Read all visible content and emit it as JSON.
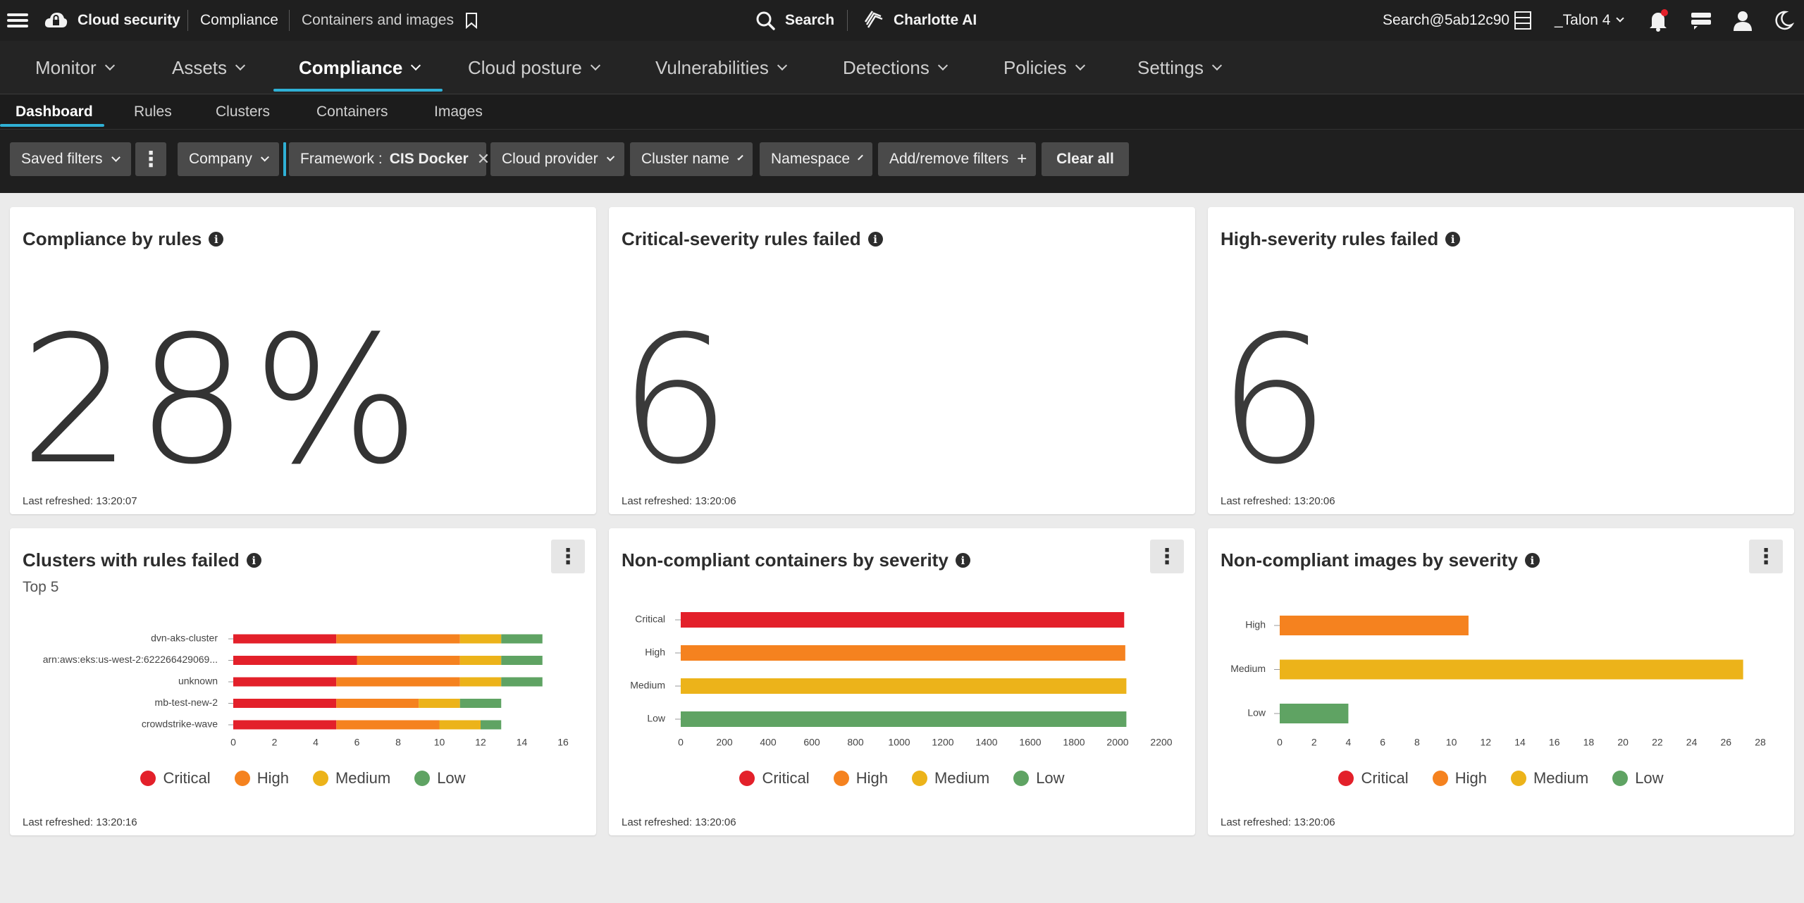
{
  "topbar": {
    "product": "Cloud security",
    "crumb1": "Compliance",
    "crumb2": "Containers and images",
    "search_label": "Search",
    "ai_label": "Charlotte AI",
    "user_email": "Search@5ab12c90",
    "tenant": "_Talon 4"
  },
  "mainnav": {
    "items": [
      {
        "label": "Monitor"
      },
      {
        "label": "Assets"
      },
      {
        "label": "Compliance"
      },
      {
        "label": "Cloud posture"
      },
      {
        "label": "Vulnerabilities"
      },
      {
        "label": "Detections"
      },
      {
        "label": "Policies"
      },
      {
        "label": "Settings"
      }
    ],
    "active": "Compliance"
  },
  "subnav": {
    "items": [
      {
        "label": "Dashboard"
      },
      {
        "label": "Rules"
      },
      {
        "label": "Clusters"
      },
      {
        "label": "Containers"
      },
      {
        "label": "Images"
      }
    ],
    "active": "Dashboard"
  },
  "filters": {
    "saved_filters": "Saved filters",
    "company": "Company",
    "framework_key": "Framework :",
    "framework_value": "CIS Docker",
    "cloud_provider": "Cloud provider",
    "cluster_name": "Cluster name",
    "namespace": "Namespace",
    "add_remove": "Add/remove filters",
    "clear_all": "Clear all"
  },
  "cards": {
    "compliance": {
      "title": "Compliance by rules",
      "value": "28%",
      "refreshed": "Last refreshed: 13:20:07"
    },
    "critical": {
      "title": "Critical-severity rules failed",
      "value": "6",
      "refreshed": "Last refreshed: 13:20:06"
    },
    "high": {
      "title": "High-severity rules failed",
      "value": "6",
      "refreshed": "Last refreshed: 13:20:06"
    },
    "clusters": {
      "title": "Clusters with rules failed",
      "subtitle": "Top 5",
      "refreshed": "Last refreshed: 13:20:16"
    },
    "containers": {
      "title": "Non-compliant containers by severity",
      "refreshed": "Last refreshed: 13:20:06"
    },
    "images": {
      "title": "Non-compliant images by severity",
      "refreshed": "Last refreshed: 13:20:06"
    }
  },
  "legend": {
    "critical": "Critical",
    "high": "High",
    "medium": "Medium",
    "low": "Low"
  },
  "colors": {
    "critical": "#e3202a",
    "high": "#f5821f",
    "medium": "#ecb31a",
    "low": "#5fa363",
    "accent": "#2fb0d5"
  },
  "icons": {
    "menu": "hamburger-menu-icon",
    "cloud": "cloud-lock-icon",
    "bookmark": "bookmark-icon",
    "search": "search-icon",
    "ai": "charlotte-ai-icon",
    "notifications": "bell-icon",
    "user": "user-icon",
    "theme": "moon-icon",
    "info": "info-icon",
    "kebab": "more-vertical-icon"
  },
  "chart_data": [
    {
      "type": "bar",
      "orientation": "horizontal",
      "stacked": true,
      "title": "Clusters with rules failed",
      "subtitle": "Top 5",
      "categories": [
        "dvn-aks-cluster",
        "arn:aws:eks:us-west-2:622266429069...",
        "unknown",
        "mb-test-new-2",
        "crowdstrike-wave"
      ],
      "series": [
        {
          "name": "Critical",
          "values": [
            5,
            6,
            5,
            5,
            5
          ]
        },
        {
          "name": "High",
          "values": [
            6,
            5,
            6,
            4,
            5
          ]
        },
        {
          "name": "Medium",
          "values": [
            2,
            2,
            2,
            2,
            2
          ]
        },
        {
          "name": "Low",
          "values": [
            2,
            2,
            2,
            2,
            1
          ]
        }
      ],
      "xlim": [
        0,
        16
      ],
      "xticks": [
        0,
        2,
        4,
        6,
        8,
        10,
        12,
        14,
        16
      ]
    },
    {
      "type": "bar",
      "orientation": "horizontal",
      "title": "Non-compliant containers by severity",
      "categories": [
        "Critical",
        "High",
        "Medium",
        "Low"
      ],
      "values": [
        2030,
        2035,
        2040,
        2040
      ],
      "xlim": [
        0,
        2200
      ],
      "xticks": [
        0,
        200,
        400,
        600,
        800,
        1000,
        1200,
        1400,
        1600,
        1800,
        2000,
        2200
      ]
    },
    {
      "type": "bar",
      "orientation": "horizontal",
      "title": "Non-compliant images by severity",
      "categories": [
        "High",
        "Medium",
        "Low"
      ],
      "values": [
        11,
        27,
        4
      ],
      "xlim": [
        0,
        28
      ],
      "xticks": [
        0,
        2,
        4,
        6,
        8,
        10,
        12,
        14,
        16,
        18,
        20,
        22,
        24,
        26,
        28
      ]
    }
  ]
}
